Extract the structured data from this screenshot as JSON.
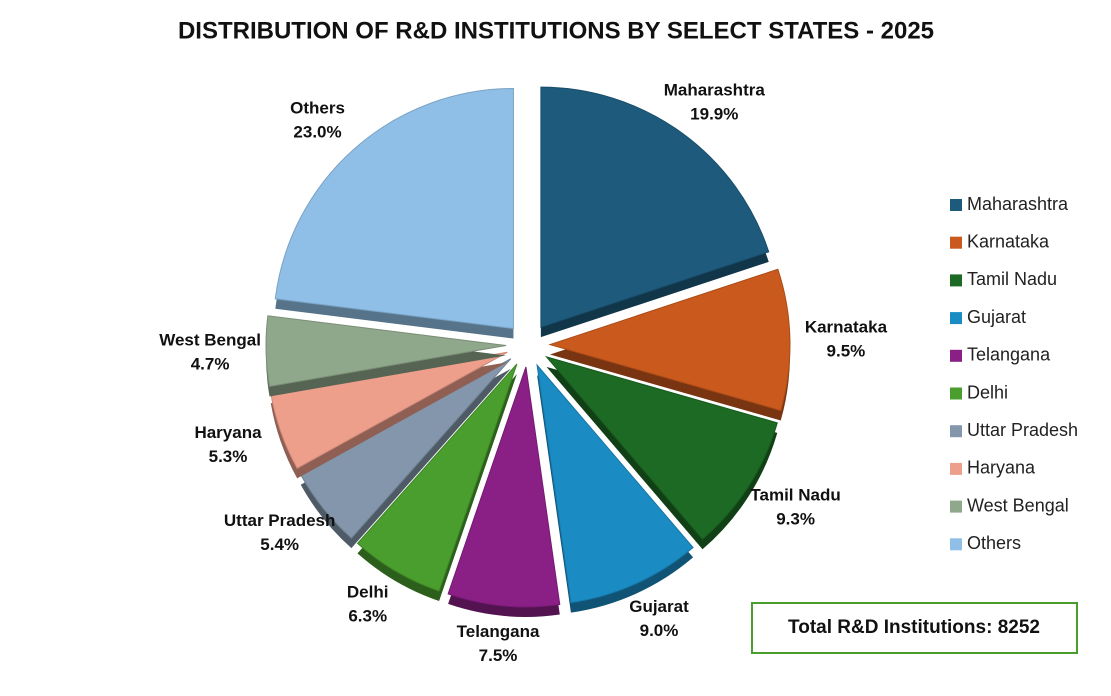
{
  "chart_data": {
    "type": "pie",
    "title": "DISTRIBUTION OF R&D INSTITUTIONS BY SELECT STATES - 2025",
    "categories": [
      "Maharashtra",
      "Karnataka",
      "Tamil Nadu",
      "Gujarat",
      "Telangana",
      "Delhi",
      "Uttar Pradesh",
      "Haryana",
      "West Bengal",
      "Others"
    ],
    "values": [
      19.9,
      9.5,
      9.3,
      9.0,
      7.5,
      6.3,
      5.4,
      5.3,
      4.7,
      23.0
    ],
    "value_labels": [
      "19.9%",
      "9.5%",
      "9.3%",
      "9.0%",
      "7.5%",
      "6.3%",
      "5.4%",
      "5.3%",
      "4.7%",
      "23.0%"
    ],
    "colors": [
      "#1d5a7c",
      "#c9591c",
      "#1d6a24",
      "#1a8bc3",
      "#8a1f86",
      "#4a9e2d",
      "#8396ab",
      "#ee9f8c",
      "#8fa78b",
      "#8fbfe6"
    ],
    "legend": "right",
    "annotation": "Total R&D Institutions: 8252"
  }
}
